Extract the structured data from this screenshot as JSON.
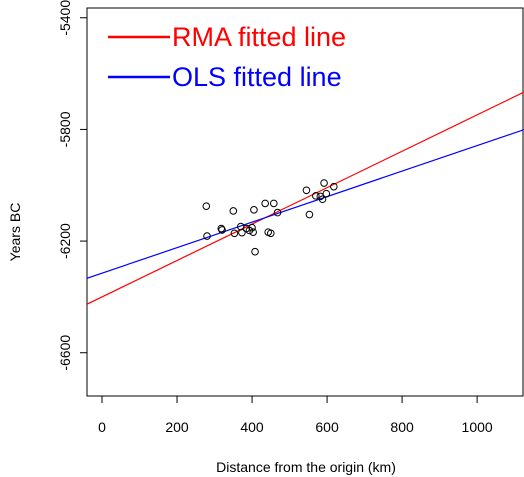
{
  "chart_data": {
    "type": "scatter",
    "xlabel": "Distance from the origin (km)",
    "ylabel": "Years BC",
    "xlim": [
      -40,
      1125
    ],
    "ylim": [
      -6755,
      -5365
    ],
    "x_ticks": [
      0,
      200,
      400,
      600,
      800,
      1000
    ],
    "y_ticks": [
      -5400,
      -5800,
      -6200,
      -6600
    ],
    "grid": false,
    "legend_position": "top-left",
    "points": [
      {
        "x": 278,
        "y": -6075
      },
      {
        "x": 280,
        "y": -6182
      },
      {
        "x": 318,
        "y": -6155
      },
      {
        "x": 320,
        "y": -6160
      },
      {
        "x": 350,
        "y": -6092
      },
      {
        "x": 353,
        "y": -6172
      },
      {
        "x": 370,
        "y": -6148
      },
      {
        "x": 373,
        "y": -6170
      },
      {
        "x": 385,
        "y": -6155
      },
      {
        "x": 393,
        "y": -6162
      },
      {
        "x": 400,
        "y": -6152
      },
      {
        "x": 403,
        "y": -6168
      },
      {
        "x": 405,
        "y": -6088
      },
      {
        "x": 408,
        "y": -6238
      },
      {
        "x": 435,
        "y": -6065
      },
      {
        "x": 443,
        "y": -6168
      },
      {
        "x": 450,
        "y": -6172
      },
      {
        "x": 458,
        "y": -6065
      },
      {
        "x": 468,
        "y": -6098
      },
      {
        "x": 545,
        "y": -6018
      },
      {
        "x": 553,
        "y": -6105
      },
      {
        "x": 570,
        "y": -6038
      },
      {
        "x": 582,
        "y": -6040
      },
      {
        "x": 588,
        "y": -6050
      },
      {
        "x": 592,
        "y": -5992
      },
      {
        "x": 598,
        "y": -6030
      },
      {
        "x": 618,
        "y": -6005
      }
    ],
    "series": [
      {
        "name": "RMA fitted line",
        "color": "#ff0000",
        "intercept": -6400,
        "slope": 0.6522
      },
      {
        "name": "OLS fitted line",
        "color": "#0000ff",
        "intercept": -6315,
        "slope": 0.4571
      }
    ]
  }
}
